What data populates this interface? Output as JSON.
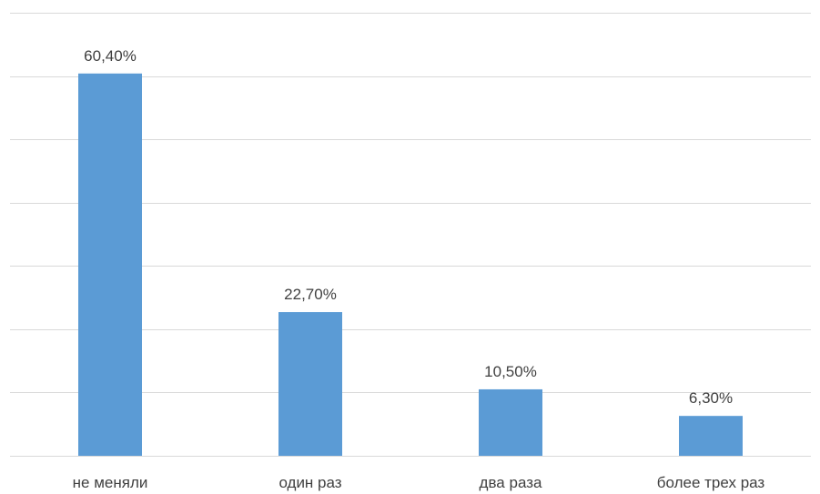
{
  "chart_data": {
    "type": "bar",
    "categories": [
      "не меняли",
      "один раз",
      "два раза",
      "более трех раз"
    ],
    "values": [
      60.4,
      22.7,
      10.5,
      6.3
    ],
    "data_labels": [
      "60,40%",
      "22,70%",
      "10,50%",
      "6,30%"
    ],
    "title": "",
    "xlabel": "",
    "ylabel": "",
    "ylim": [
      0,
      70
    ],
    "y_gridline_step": 10,
    "y_tick_labels_visible": false,
    "grid": true,
    "legend": "none",
    "bar_color": "#5b9bd5",
    "gridline_color": "#d9d9d9",
    "text_color": "#404040"
  }
}
